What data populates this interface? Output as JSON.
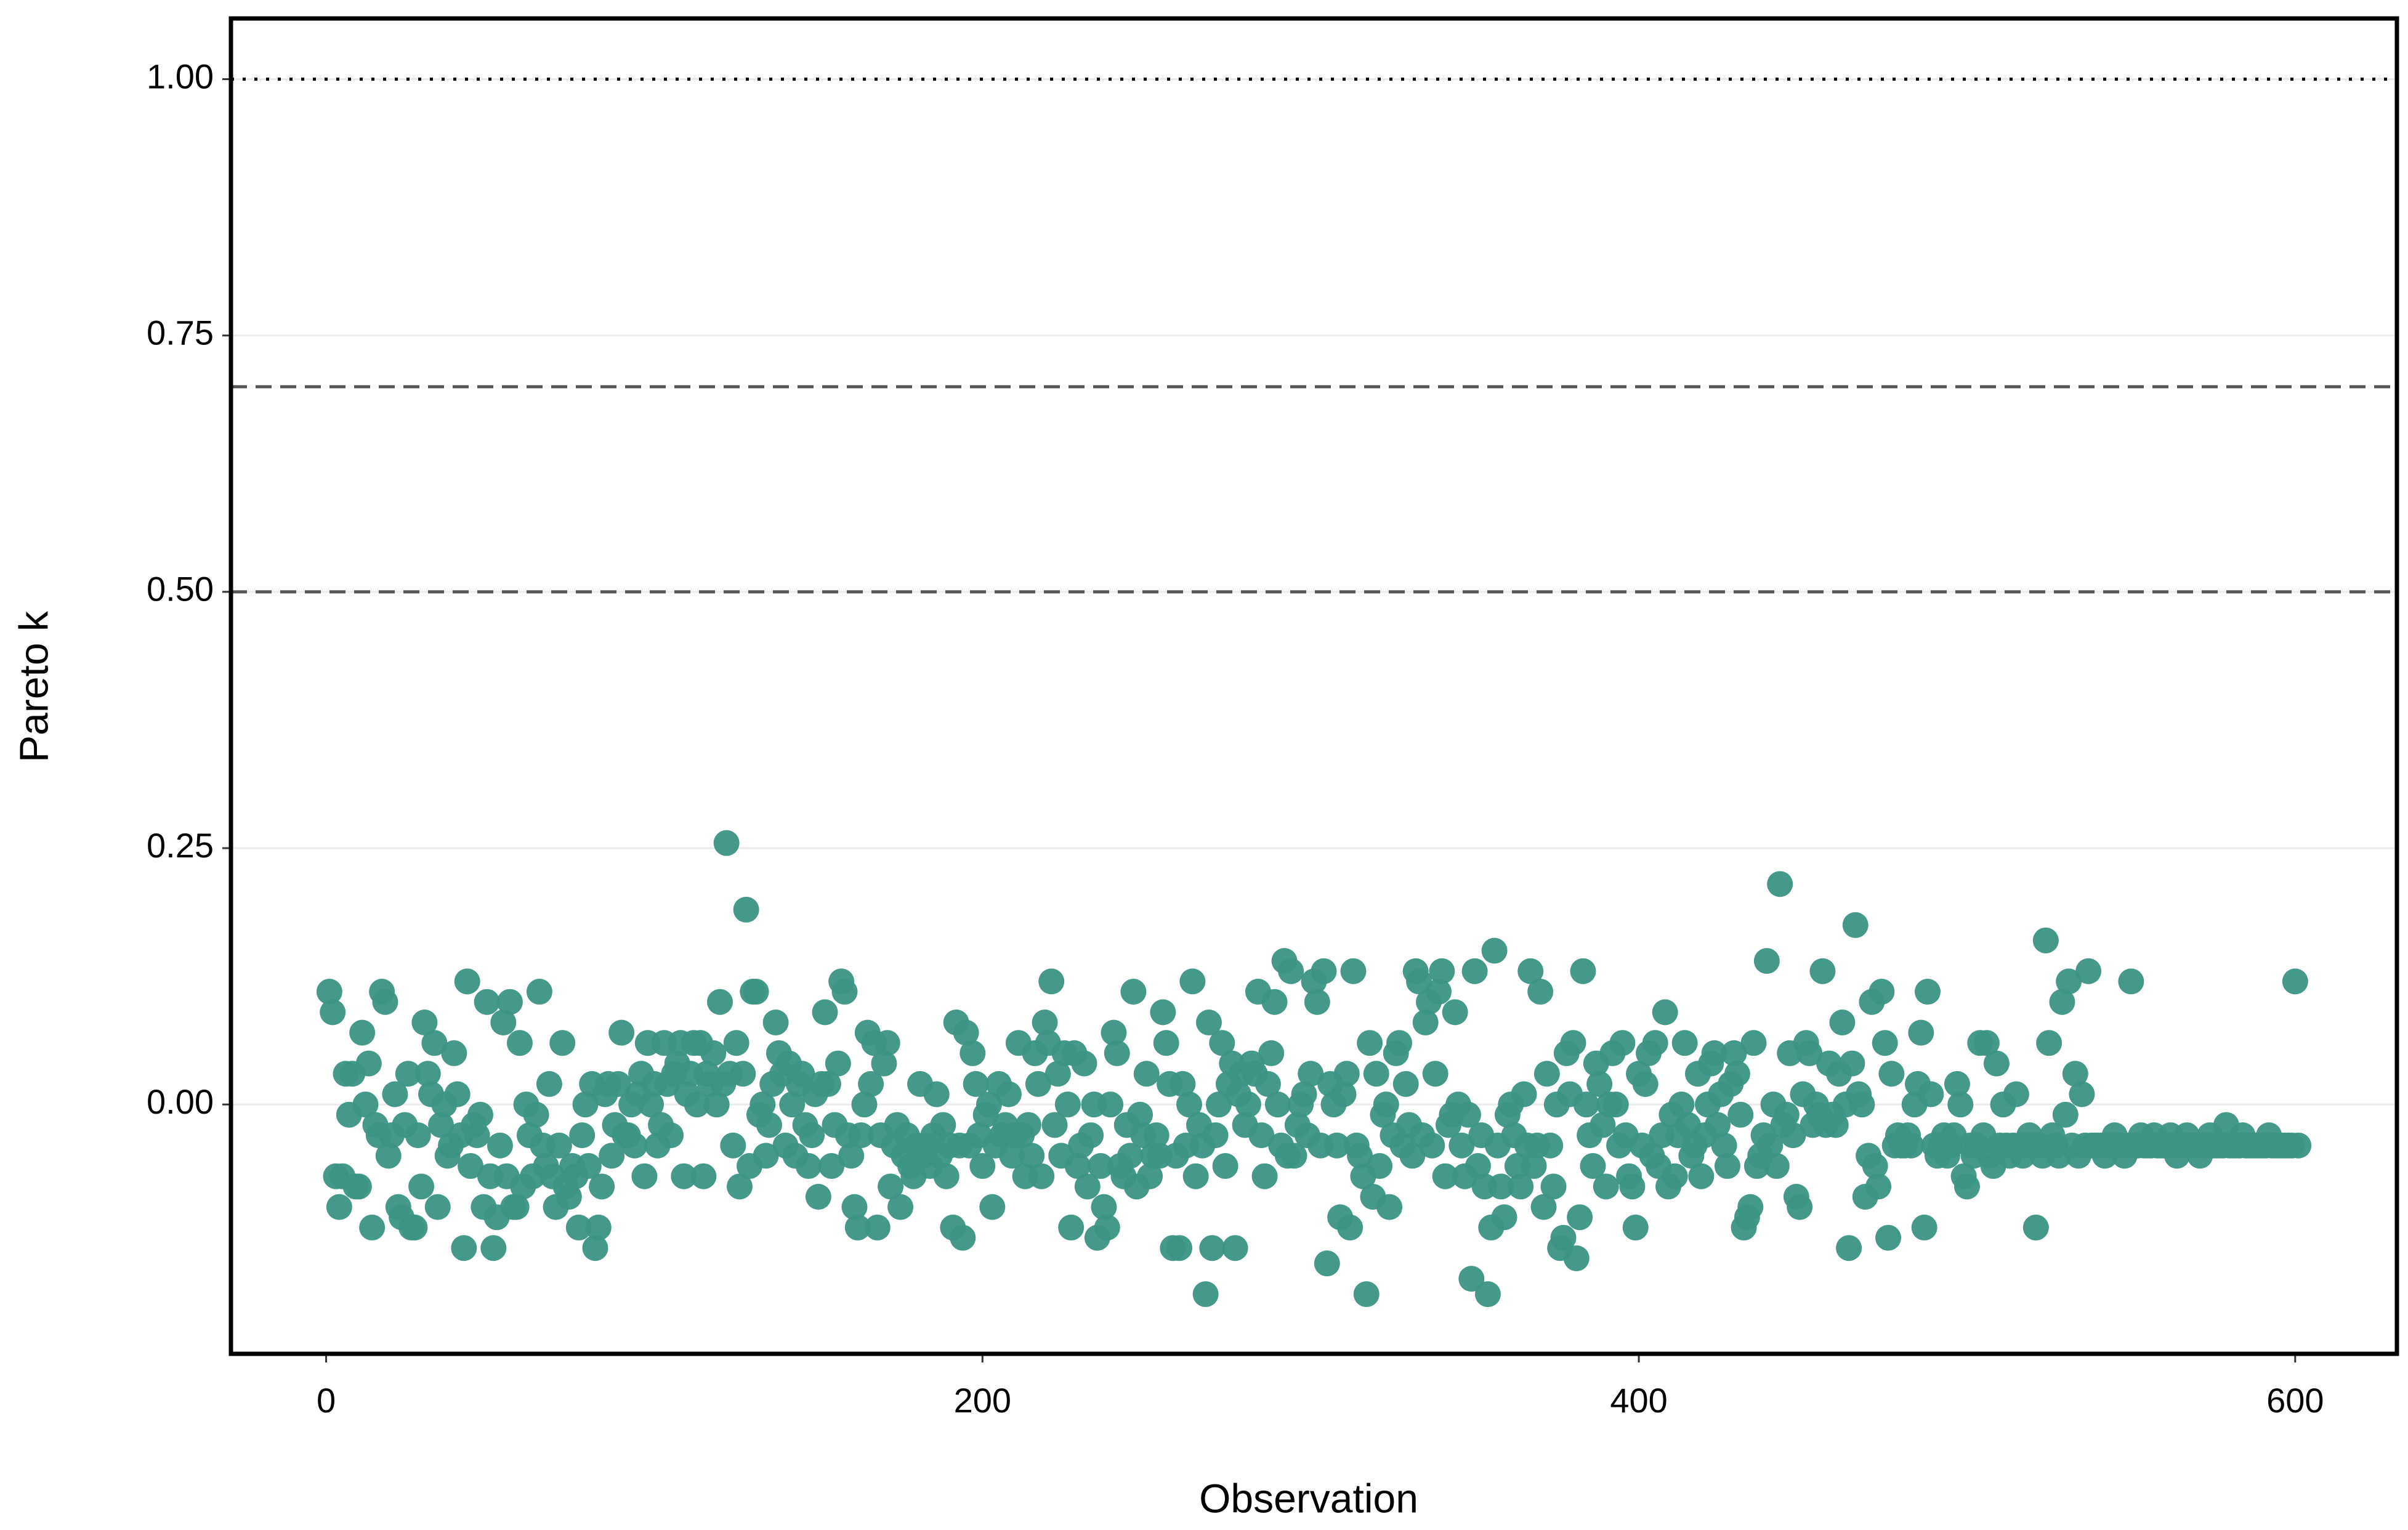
{
  "chart_data": {
    "type": "scatter",
    "xlabel": "Observation",
    "ylabel": "Pareto k",
    "xlim": [
      -29,
      631
    ],
    "ylim": [
      -0.2432,
      1.0592
    ],
    "xticks": [
      0,
      200,
      400,
      600
    ],
    "yticks": [
      {
        "value": 0,
        "label": "0.00"
      },
      {
        "value": 0.25,
        "label": "0.25"
      },
      {
        "value": 0.5,
        "label": "0.50"
      },
      {
        "value": 0.75,
        "label": "0.75"
      },
      {
        "value": 1,
        "label": "1.00"
      }
    ],
    "grid": "y",
    "hlines": [
      {
        "value": 1,
        "style": "dotted"
      },
      {
        "value": 0.7,
        "style": "dashed"
      },
      {
        "value": 0.5,
        "style": "dashed"
      }
    ],
    "series": [
      {
        "color": "#3b9484",
        "x": [
          1,
          2,
          3,
          4,
          5,
          6,
          7,
          8,
          9,
          10,
          11,
          12,
          13,
          14,
          15,
          16,
          17,
          18,
          19,
          20,
          21,
          22,
          23,
          24,
          25,
          26,
          27,
          28,
          29,
          30,
          31,
          32,
          33,
          34,
          35,
          36,
          37,
          38,
          39,
          40,
          41,
          42,
          43,
          44,
          45,
          46,
          47,
          48,
          49,
          50,
          51,
          52,
          53,
          54,
          55,
          56,
          57,
          58,
          59,
          60,
          61,
          62,
          63,
          64,
          65,
          66,
          67,
          68,
          69,
          70,
          71,
          72,
          73,
          74,
          75,
          76,
          77,
          78,
          79,
          80,
          81,
          82,
          83,
          84,
          85,
          86,
          87,
          88,
          89,
          90,
          91,
          92,
          93,
          94,
          95,
          96,
          97,
          98,
          99,
          100,
          101,
          102,
          103,
          104,
          105,
          106,
          107,
          108,
          109,
          110,
          111,
          112,
          113,
          114,
          115,
          116,
          117,
          118,
          119,
          120,
          121,
          122,
          123,
          124,
          125,
          126,
          127,
          128,
          129,
          130,
          131,
          132,
          133,
          134,
          135,
          136,
          137,
          138,
          139,
          140,
          141,
          142,
          143,
          144,
          145,
          146,
          147,
          148,
          149,
          150,
          151,
          152,
          153,
          154,
          155,
          156,
          157,
          158,
          159,
          160,
          161,
          162,
          163,
          164,
          165,
          166,
          167,
          168,
          169,
          170,
          171,
          172,
          173,
          174,
          175,
          176,
          177,
          178,
          179,
          180,
          181,
          182,
          183,
          184,
          185,
          186,
          187,
          188,
          189,
          190,
          191,
          192,
          193,
          194,
          195,
          196,
          197,
          198,
          199,
          200,
          201,
          202,
          203,
          204,
          205,
          206,
          207,
          208,
          209,
          210,
          211,
          212,
          213,
          214,
          215,
          216,
          217,
          218,
          219,
          220,
          221,
          222,
          223,
          224,
          225,
          226,
          227,
          228,
          229,
          230,
          231,
          232,
          233,
          234,
          235,
          236,
          237,
          238,
          239,
          240,
          241,
          242,
          243,
          244,
          245,
          246,
          247,
          248,
          249,
          250,
          251,
          252,
          253,
          254,
          255,
          256,
          257,
          258,
          259,
          260,
          261,
          262,
          263,
          264,
          265,
          266,
          267,
          268,
          269,
          270,
          271,
          272,
          273,
          274,
          275,
          276,
          277,
          278,
          279,
          280,
          281,
          282,
          283,
          284,
          285,
          286,
          287,
          288,
          289,
          290,
          291,
          292,
          293,
          294,
          295,
          296,
          297,
          298,
          299,
          300,
          301,
          302,
          303,
          304,
          305,
          306,
          307,
          308,
          309,
          310,
          311,
          312,
          313,
          314,
          315,
          316,
          317,
          318,
          319,
          320,
          321,
          322,
          323,
          324,
          325,
          326,
          327,
          328,
          329,
          330,
          331,
          332,
          333,
          334,
          335,
          336,
          337,
          338,
          339,
          340,
          341,
          342,
          343,
          344,
          345,
          346,
          347,
          348,
          349,
          350,
          351,
          352,
          353,
          354,
          355,
          356,
          357,
          358,
          359,
          360,
          361,
          362,
          363,
          364,
          365,
          366,
          367,
          368,
          369,
          370,
          371,
          372,
          373,
          374,
          375,
          376,
          377,
          378,
          379,
          380,
          381,
          382,
          383,
          384,
          385,
          386,
          387,
          388,
          389,
          390,
          391,
          392,
          393,
          394,
          395,
          396,
          397,
          398,
          399,
          400,
          401,
          402,
          403,
          404,
          405,
          406,
          407,
          408,
          409,
          410,
          411,
          412,
          413,
          414,
          415,
          416,
          417,
          418,
          419,
          420,
          421,
          422,
          423,
          424,
          425,
          426,
          427,
          428,
          429,
          430,
          431,
          432,
          433,
          434,
          435,
          436,
          437,
          438,
          439,
          440,
          441,
          442,
          443,
          444,
          445,
          446,
          447,
          448,
          449,
          450,
          451,
          452,
          453,
          454,
          455,
          456,
          457,
          458,
          459,
          460,
          461,
          462,
          463,
          464,
          465,
          466,
          467,
          468,
          469,
          470,
          471,
          472,
          473,
          474,
          475,
          476,
          477,
          478,
          479,
          480,
          481,
          482,
          483,
          484,
          485,
          486,
          487,
          488,
          489,
          490,
          491,
          492,
          493,
          494,
          495,
          496,
          497,
          498,
          499,
          500,
          501,
          502,
          503,
          504,
          505,
          506,
          507,
          508,
          509,
          510,
          511,
          512,
          513,
          514,
          515,
          516,
          517,
          518,
          519,
          520,
          521,
          522,
          523,
          524,
          525,
          526,
          527,
          528,
          529,
          530,
          531,
          532,
          533,
          534,
          535,
          536,
          537,
          538,
          539,
          540,
          541,
          542,
          543,
          544,
          545,
          546,
          547,
          548,
          549,
          550,
          551,
          552,
          553,
          554,
          555,
          556,
          557,
          558,
          559,
          560,
          561,
          562,
          563,
          564,
          565,
          566,
          567,
          568,
          569,
          570,
          571,
          572,
          573,
          574,
          575,
          576,
          577,
          578,
          579,
          580,
          581,
          582,
          583,
          584,
          585,
          586,
          587,
          588,
          589,
          590,
          591,
          592,
          593,
          594,
          595,
          596,
          597,
          598,
          599,
          600,
          601
        ],
        "values": [
          0.11,
          0.09,
          -0.07,
          -0.1,
          -0.07,
          0.03,
          -0.01,
          0.03,
          -0.08,
          -0.08,
          0.07,
          0.0,
          0.04,
          -0.12,
          -0.02,
          -0.03,
          0.11,
          0.1,
          -0.05,
          -0.03,
          0.01,
          -0.1,
          -0.11,
          -0.02,
          0.03,
          -0.12,
          -0.12,
          -0.03,
          -0.08,
          0.08,
          0.03,
          0.01,
          0.06,
          -0.1,
          -0.02,
          0.0,
          -0.05,
          -0.04,
          0.05,
          0.01,
          -0.03,
          -0.14,
          0.12,
          -0.06,
          -0.02,
          -0.03,
          -0.01,
          -0.1,
          0.1,
          -0.07,
          -0.14,
          -0.11,
          -0.04,
          0.08,
          -0.07,
          0.1,
          -0.1,
          -0.1,
          0.06,
          -0.08,
          0.0,
          -0.03,
          -0.07,
          -0.01,
          0.11,
          -0.04,
          -0.06,
          0.02,
          -0.07,
          -0.1,
          -0.04,
          0.06,
          -0.08,
          -0.09,
          -0.06,
          -0.07,
          -0.12,
          -0.03,
          0.0,
          -0.06,
          0.02,
          -0.14,
          -0.12,
          -0.08,
          0.01,
          0.02,
          -0.05,
          -0.02,
          0.02,
          0.07,
          -0.03,
          -0.03,
          0.0,
          -0.04,
          0.01,
          0.03,
          -0.07,
          0.06,
          0.0,
          0.02,
          -0.04,
          -0.02,
          0.06,
          0.02,
          -0.03,
          0.03,
          0.04,
          0.06,
          -0.07,
          0.01,
          0.03,
          0.06,
          0.0,
          0.06,
          -0.07,
          0.03,
          0.02,
          0.05,
          0.0,
          0.1,
          0.02,
          0.255,
          0.03,
          -0.04,
          0.06,
          -0.08,
          0.03,
          0.19,
          -0.06,
          0.11,
          0.11,
          -0.01,
          0.0,
          -0.05,
          -0.02,
          0.02,
          0.08,
          0.05,
          0.03,
          -0.04,
          0.04,
          0.0,
          -0.05,
          0.02,
          0.03,
          -0.02,
          -0.06,
          -0.03,
          0.01,
          -0.09,
          0.02,
          0.09,
          0.02,
          -0.06,
          -0.02,
          0.04,
          0.12,
          0.11,
          -0.03,
          -0.05,
          -0.1,
          -0.12,
          -0.03,
          0.0,
          0.07,
          0.02,
          0.06,
          -0.12,
          -0.03,
          0.04,
          0.06,
          -0.08,
          -0.04,
          -0.02,
          -0.1,
          -0.05,
          -0.03,
          -0.06,
          -0.07,
          -0.04,
          0.02,
          -0.05,
          -0.04,
          -0.06,
          -0.03,
          0.01,
          -0.05,
          -0.02,
          -0.07,
          -0.04,
          -0.12,
          0.08,
          -0.04,
          -0.13,
          0.07,
          -0.04,
          0.05,
          0.02,
          -0.03,
          -0.06,
          -0.01,
          0.0,
          -0.1,
          -0.04,
          0.02,
          -0.03,
          -0.02,
          0.01,
          -0.05,
          -0.03,
          0.06,
          -0.03,
          -0.07,
          -0.02,
          -0.05,
          0.05,
          0.02,
          -0.07,
          0.08,
          0.06,
          0.12,
          -0.02,
          0.03,
          -0.05,
          0.05,
          0.0,
          -0.12,
          0.05,
          -0.06,
          -0.04,
          0.04,
          -0.08,
          -0.03,
          0.0,
          -0.13,
          -0.06,
          -0.1,
          -0.12,
          0.0,
          0.07,
          0.05,
          -0.06,
          -0.07,
          -0.02,
          -0.05,
          0.11,
          -0.08,
          -0.01,
          -0.03,
          0.03,
          -0.07,
          -0.05,
          -0.03,
          -0.05,
          0.09,
          0.06,
          0.02,
          -0.14,
          -0.05,
          -0.14,
          0.02,
          -0.04,
          0.0,
          0.12,
          -0.07,
          -0.02,
          -0.04,
          -0.185,
          0.08,
          -0.14,
          -0.03,
          0.0,
          0.06,
          -0.06,
          0.02,
          0.04,
          -0.14,
          0.01,
          0.03,
          -0.02,
          0.0,
          0.04,
          0.03,
          0.11,
          -0.03,
          -0.07,
          0.02,
          0.05,
          0.1,
          0.0,
          -0.04,
          0.14,
          -0.05,
          0.13,
          -0.05,
          -0.02,
          0.0,
          0.01,
          -0.03,
          0.03,
          0.12,
          0.1,
          -0.04,
          0.13,
          -0.155,
          0.02,
          0.0,
          -0.04,
          -0.11,
          0.01,
          0.03,
          -0.12,
          0.13,
          -0.04,
          -0.05,
          -0.07,
          -0.185,
          0.06,
          -0.09,
          0.03,
          -0.06,
          -0.01,
          0.0,
          -0.1,
          -0.03,
          0.05,
          0.06,
          -0.04,
          0.02,
          -0.02,
          -0.05,
          0.13,
          0.12,
          -0.03,
          0.08,
          0.1,
          -0.04,
          0.03,
          0.11,
          0.13,
          -0.07,
          -0.02,
          -0.01,
          0.09,
          0.0,
          -0.04,
          -0.07,
          -0.01,
          -0.17,
          0.13,
          -0.06,
          -0.03,
          -0.08,
          -0.185,
          -0.12,
          0.15,
          -0.04,
          -0.08,
          -0.11,
          -0.01,
          0.0,
          -0.03,
          -0.06,
          -0.08,
          0.01,
          -0.04,
          0.13,
          -0.06,
          -0.04,
          0.11,
          -0.1,
          0.03,
          -0.04,
          -0.08,
          0.0,
          -0.14,
          -0.13,
          0.05,
          0.01,
          0.06,
          -0.15,
          -0.11,
          0.13,
          0.0,
          -0.03,
          -0.06,
          0.04,
          0.02,
          -0.02,
          -0.08,
          0.0,
          0.05,
          0.0,
          -0.04,
          0.06,
          -0.03,
          -0.07,
          -0.08,
          -0.12,
          0.03,
          -0.04,
          0.02,
          0.05,
          -0.05,
          0.06,
          -0.06,
          -0.03,
          0.09,
          -0.08,
          -0.01,
          -0.07,
          -0.03,
          0.0,
          0.06,
          -0.02,
          -0.05,
          -0.04,
          0.03,
          -0.07,
          -0.03,
          0.0,
          0.04,
          0.05,
          -0.02,
          0.01,
          -0.04,
          -0.06,
          0.02,
          0.05,
          0.03,
          -0.01,
          -0.12,
          -0.11,
          -0.1,
          0.06,
          -0.06,
          -0.05,
          -0.03,
          0.14,
          -0.04,
          0.0,
          -0.06,
          0.215,
          -0.02,
          -0.01,
          0.05,
          -0.03,
          -0.09,
          -0.1,
          0.01,
          0.06,
          0.05,
          -0.02,
          0.0,
          -0.01,
          0.13,
          -0.02,
          0.04,
          -0.01,
          -0.02,
          0.03,
          0.08,
          0.0,
          -0.14,
          0.04,
          0.175,
          0.01,
          0.0,
          -0.09,
          -0.05,
          0.1,
          -0.06,
          -0.08,
          0.11,
          0.06,
          -0.13,
          0.03,
          -0.04,
          -0.03,
          -0.04,
          -0.04,
          -0.03,
          -0.04,
          0.0,
          0.02,
          0.07,
          -0.12,
          0.11,
          0.01,
          -0.04,
          -0.05,
          -0.04,
          -0.03,
          -0.05,
          -0.04,
          -0.03,
          0.02,
          0.0,
          -0.07,
          -0.08,
          -0.04,
          -0.05,
          -0.04,
          0.06,
          -0.03,
          0.06,
          -0.05,
          -0.06,
          0.04,
          -0.04,
          0.0,
          -0.04,
          -0.05,
          -0.04,
          0.01,
          -0.04,
          -0.05,
          -0.04,
          -0.03,
          -0.04,
          -0.12,
          -0.04,
          -0.05,
          0.16,
          0.06,
          -0.03,
          -0.04,
          -0.05,
          0.1,
          -0.01,
          0.12,
          -0.04,
          0.03,
          -0.05,
          0.01,
          -0.04,
          0.13,
          -0.04,
          -0.04,
          -0.04,
          -0.04,
          -0.05,
          -0.04,
          -0.04,
          -0.03,
          -0.04,
          -0.04,
          -0.05,
          -0.04,
          0.12,
          -0.04,
          -0.04,
          -0.03,
          -0.04,
          -0.04,
          -0.04,
          -0.03,
          -0.04,
          -0.04,
          -0.04,
          -0.04,
          -0.03,
          -0.04,
          -0.05,
          -0.04,
          -0.04,
          -0.03,
          -0.04,
          -0.04,
          -0.04,
          -0.05,
          -0.04,
          -0.04,
          -0.03,
          -0.04,
          -0.04,
          -0.04,
          -0.04,
          -0.02,
          -0.04,
          -0.04,
          -0.04,
          -0.04,
          -0.03,
          -0.04,
          -0.04,
          -0.04,
          -0.04,
          -0.04,
          -0.04,
          -0.04,
          -0.03,
          -0.04,
          -0.04,
          -0.04,
          -0.04,
          -0.04,
          -0.04,
          -0.04,
          0.12,
          -0.04
        ]
      }
    ]
  }
}
